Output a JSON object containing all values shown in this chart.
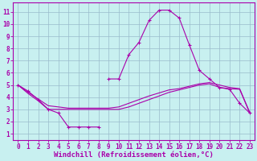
{
  "xlabel": "Windchill (Refroidissement éolien,°C)",
  "bg_color": "#c8f0f0",
  "line_color": "#aa00aa",
  "grid_color": "#99bbcc",
  "xlim": [
    -0.5,
    23.5
  ],
  "ylim": [
    0.5,
    11.8
  ],
  "xticks": [
    0,
    1,
    2,
    3,
    4,
    5,
    6,
    7,
    8,
    9,
    10,
    11,
    12,
    13,
    14,
    15,
    16,
    17,
    18,
    19,
    20,
    21,
    22,
    23
  ],
  "yticks": [
    1,
    2,
    3,
    4,
    5,
    6,
    7,
    8,
    9,
    10,
    11
  ],
  "tick_fontsize": 5.5,
  "xlabel_fontsize": 6.5,
  "curve1_x": [
    0,
    1,
    2,
    3,
    4,
    5,
    6,
    7,
    8
  ],
  "curve1_y": [
    5.0,
    4.5,
    3.8,
    3.0,
    2.7,
    1.55,
    1.55,
    1.55,
    1.55
  ],
  "curve2_x": [
    9,
    10,
    11,
    12,
    13,
    14,
    15,
    16,
    17,
    18,
    19,
    20,
    21,
    22,
    23
  ],
  "curve2_y": [
    5.5,
    5.5,
    7.5,
    8.5,
    10.3,
    11.15,
    11.15,
    10.5,
    8.3,
    6.2,
    5.5,
    4.8,
    4.65,
    3.5,
    2.7
  ],
  "curve3_x": [
    0,
    1,
    2,
    3,
    4,
    5,
    6,
    7,
    8,
    9,
    10,
    11,
    12,
    13,
    14,
    15,
    16,
    17,
    18,
    19,
    20,
    21,
    22,
    23
  ],
  "curve3_y": [
    5.0,
    4.3,
    3.7,
    3.0,
    3.0,
    3.0,
    3.0,
    3.0,
    3.0,
    3.0,
    3.0,
    3.2,
    3.5,
    3.8,
    4.1,
    4.4,
    4.6,
    4.8,
    5.0,
    5.1,
    4.8,
    4.7,
    4.65,
    2.7
  ],
  "curve4_x": [
    0,
    1,
    2,
    3,
    4,
    5,
    6,
    7,
    8,
    9,
    10,
    11,
    12,
    13,
    14,
    15,
    16,
    17,
    18,
    19,
    20,
    21,
    22,
    23
  ],
  "curve4_y": [
    5.0,
    4.4,
    3.85,
    3.3,
    3.2,
    3.1,
    3.1,
    3.1,
    3.1,
    3.1,
    3.2,
    3.5,
    3.8,
    4.1,
    4.35,
    4.6,
    4.7,
    4.9,
    5.1,
    5.2,
    5.0,
    4.8,
    4.7,
    2.75
  ]
}
